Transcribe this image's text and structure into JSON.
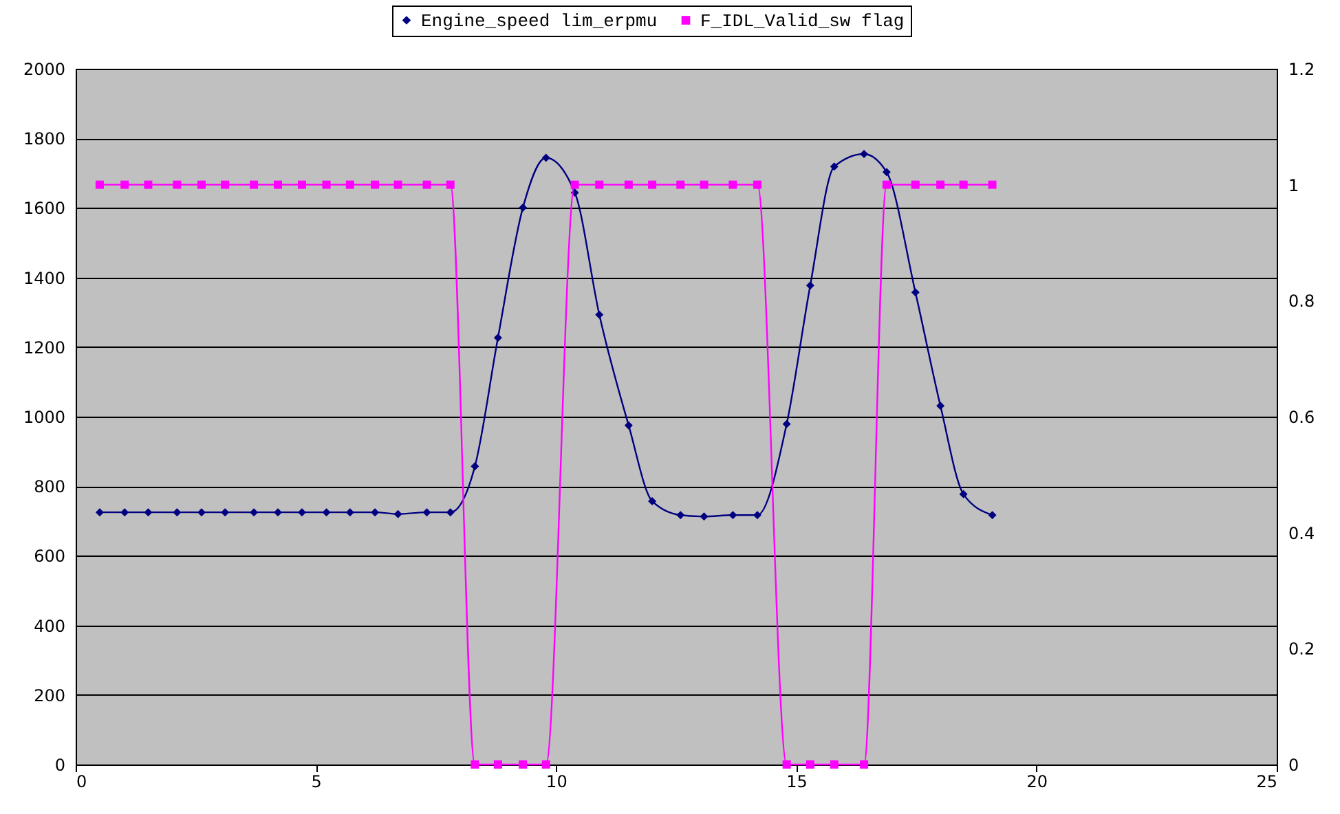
{
  "chart_data": {
    "type": "line",
    "x": [
      0.5,
      1.02,
      1.51,
      2.11,
      2.62,
      3.11,
      3.71,
      4.21,
      4.71,
      5.22,
      5.71,
      6.23,
      6.71,
      7.31,
      7.8,
      8.31,
      8.79,
      9.31,
      9.79,
      10.39,
      10.9,
      11.51,
      12.0,
      12.59,
      13.08,
      13.68,
      14.19,
      14.8,
      15.29,
      15.79,
      16.41,
      16.88,
      17.48,
      18.0,
      18.48,
      19.08
    ],
    "series": [
      {
        "name": "Engine_speed lim_erpmu",
        "color": "#000080",
        "marker": "diamond",
        "values": [
          725,
          725,
          725,
          725,
          725,
          725,
          725,
          725,
          725,
          725,
          725,
          725,
          720,
          725,
          725,
          857,
          1227,
          1601,
          1744,
          1644,
          1293,
          975,
          757,
          717,
          713,
          717,
          717,
          979,
          1377,
          1719,
          1755,
          1703,
          1357,
          1031,
          777,
          717
        ]
      },
      {
        "name": "F_IDL_Valid_sw flag",
        "color": "#ff00ff",
        "marker": "square",
        "axis": "y2",
        "values": [
          1,
          1,
          1,
          1,
          1,
          1,
          1,
          1,
          1,
          1,
          1,
          1,
          1,
          1,
          1,
          0,
          0,
          0,
          0,
          1,
          1,
          1,
          1,
          1,
          1,
          1,
          1,
          0,
          0,
          0,
          0,
          1,
          1,
          1,
          1,
          1
        ]
      }
    ],
    "xlim": [
      0,
      25
    ],
    "xticks": [
      0,
      5,
      10,
      15,
      20,
      25
    ],
    "ylim": [
      0,
      2000
    ],
    "yticks": [
      0,
      200,
      400,
      600,
      800,
      1000,
      1200,
      1400,
      1600,
      1800,
      2000
    ],
    "y2lim": [
      0,
      1.2
    ],
    "y2ticks": [
      0,
      0.2,
      0.4,
      0.6,
      0.8,
      1,
      1.2
    ],
    "grid": "y",
    "legend": "top",
    "line_style": "solid"
  }
}
